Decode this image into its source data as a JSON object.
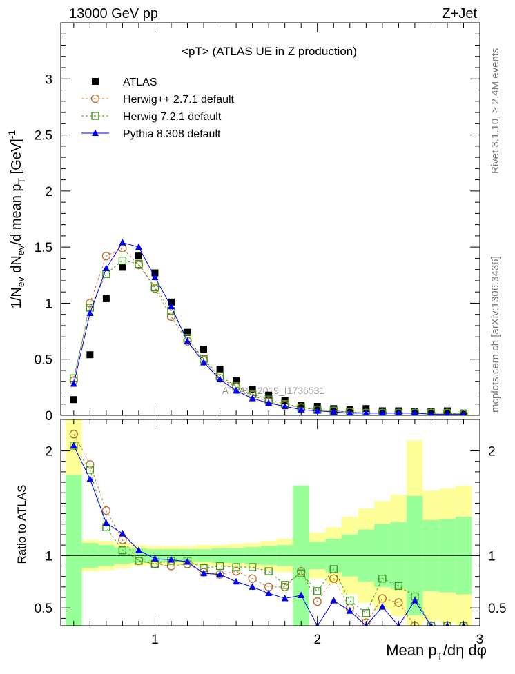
{
  "header": {
    "left": "13000 GeV pp",
    "right": "Z+Jet"
  },
  "side_labels": {
    "rivet": "Rivet 3.1.10, ≥ 2.4M events",
    "mcplots": "mcplots.cern.ch [arXiv:1306.3436]"
  },
  "watermark": "ATLAS_2019_I1736531",
  "colors": {
    "atlas": "#000000",
    "herwigpp": "#b8732e",
    "herwig7": "#3d9a1e",
    "pythia": "#0000ee",
    "band_inner": "#99ff99",
    "band_outer": "#ffff99"
  },
  "chart_data": [
    {
      "type": "scatter",
      "panel": "main",
      "title": "<pT> (ATLAS UE in Z production)",
      "ylabel": "1/N_ev dN_ev/d mean p_T [GeV]^-1",
      "xlim": [
        0.42,
        3.0
      ],
      "ylim": [
        0,
        3.5
      ],
      "yticks": [
        0,
        0.5,
        1,
        1.5,
        2,
        2.5,
        3
      ],
      "ytick_labels": [
        "0",
        "0.5",
        "1",
        "1.5",
        "2",
        "2.5",
        "3"
      ],
      "legend_position": "top-left",
      "x": [
        0.5,
        0.6,
        0.7,
        0.8,
        0.9,
        1.0,
        1.1,
        1.2,
        1.3,
        1.4,
        1.5,
        1.6,
        1.7,
        1.8,
        1.9,
        2.0,
        2.1,
        2.2,
        2.3,
        2.4,
        2.5,
        2.6,
        2.7,
        2.8,
        2.9
      ],
      "series": [
        {
          "name": "ATLAS",
          "marker": "filled-square",
          "values": [
            0.14,
            0.54,
            1.04,
            1.32,
            1.42,
            1.27,
            1.01,
            0.74,
            0.59,
            0.41,
            0.31,
            0.23,
            0.18,
            0.13,
            0.09,
            0.08,
            0.06,
            0.05,
            0.06,
            0.04,
            0.04,
            0.03,
            0.03,
            0.04,
            0.02
          ]
        },
        {
          "name": "Herwig++ 2.7.1 default",
          "marker": "open-circle",
          "line": "dashed",
          "values": [
            0.31,
            1.0,
            1.42,
            1.49,
            1.34,
            1.13,
            0.88,
            0.66,
            0.49,
            0.33,
            0.25,
            0.18,
            0.12,
            0.09,
            0.07,
            0.05,
            0.04,
            0.03,
            0.02,
            0.02,
            0.02,
            0.02,
            0.02,
            0.02,
            0.01
          ]
        },
        {
          "name": "Herwig 7.2.1 default",
          "marker": "open-square",
          "line": "dashed",
          "values": [
            0.33,
            0.96,
            1.26,
            1.38,
            1.35,
            1.14,
            0.93,
            0.69,
            0.5,
            0.35,
            0.26,
            0.19,
            0.14,
            0.1,
            0.07,
            0.05,
            0.04,
            0.03,
            0.02,
            0.02,
            0.02,
            0.02,
            0.02,
            0.02,
            0.01
          ]
        },
        {
          "name": "Pythia 8.308 default",
          "marker": "filled-triangle",
          "line": "solid",
          "values": [
            0.28,
            0.91,
            1.31,
            1.54,
            1.5,
            1.23,
            0.97,
            0.66,
            0.47,
            0.32,
            0.22,
            0.15,
            0.11,
            0.08,
            0.05,
            0.04,
            0.03,
            0.02,
            0.02,
            0.02,
            0.02,
            0.02,
            0.01,
            0.01,
            0.01
          ]
        }
      ]
    },
    {
      "type": "scatter",
      "panel": "ratio",
      "ylabel": "Ratio to ATLAS",
      "xlabel": "Mean p_T/dη dφ",
      "xlim": [
        0.42,
        3.0
      ],
      "ylim": [
        0.33,
        2.3
      ],
      "xticks": [
        1,
        2,
        3
      ],
      "xtick_labels": [
        "1",
        "2",
        "3"
      ],
      "yticks": [
        0.5,
        1,
        2
      ],
      "ytick_labels": [
        "0.5",
        "1",
        "2"
      ],
      "reference_line": 1,
      "x": [
        0.5,
        0.6,
        0.7,
        0.8,
        0.9,
        1.0,
        1.1,
        1.2,
        1.3,
        1.4,
        1.5,
        1.6,
        1.7,
        1.8,
        1.9,
        2.0,
        2.1,
        2.2,
        2.3,
        2.4,
        2.5,
        2.6,
        2.7,
        2.8,
        2.9
      ],
      "band_inner": [
        [
          0.22,
          1.77
        ],
        [
          0.88,
          1.12
        ],
        [
          0.9,
          1.1
        ],
        [
          0.92,
          1.08
        ],
        [
          0.93,
          1.07
        ],
        [
          0.94,
          1.06
        ],
        [
          0.94,
          1.06
        ],
        [
          0.94,
          1.06
        ],
        [
          0.94,
          1.06
        ],
        [
          0.93,
          1.07
        ],
        [
          0.93,
          1.07
        ],
        [
          0.92,
          1.08
        ],
        [
          0.91,
          1.09
        ],
        [
          0.9,
          1.1
        ],
        [
          0.33,
          1.67
        ],
        [
          0.87,
          1.13
        ],
        [
          0.84,
          1.16
        ],
        [
          0.8,
          1.2
        ],
        [
          0.75,
          1.25
        ],
        [
          0.7,
          1.3
        ],
        [
          0.68,
          1.32
        ],
        [
          0.43,
          1.57
        ],
        [
          0.66,
          1.34
        ],
        [
          0.65,
          1.35
        ],
        [
          0.63,
          1.37
        ]
      ],
      "band_outer": [
        [
          0.33,
          2.3
        ],
        [
          0.85,
          1.15
        ],
        [
          0.86,
          1.14
        ],
        [
          0.88,
          1.12
        ],
        [
          0.9,
          1.1
        ],
        [
          0.91,
          1.09
        ],
        [
          0.91,
          1.09
        ],
        [
          0.91,
          1.09
        ],
        [
          0.9,
          1.1
        ],
        [
          0.9,
          1.1
        ],
        [
          0.89,
          1.11
        ],
        [
          0.88,
          1.12
        ],
        [
          0.86,
          1.14
        ],
        [
          0.84,
          1.16
        ],
        [
          0.33,
          1.67
        ],
        [
          0.78,
          1.22
        ],
        [
          0.73,
          1.27
        ],
        [
          0.63,
          1.37
        ],
        [
          0.55,
          1.45
        ],
        [
          0.48,
          1.52
        ],
        [
          0.42,
          1.58
        ],
        [
          0.33,
          2.1
        ],
        [
          0.38,
          1.62
        ],
        [
          0.36,
          1.64
        ],
        [
          0.33,
          1.67
        ]
      ],
      "series": [
        {
          "name": "Herwig++ 2.7.1 default",
          "marker": "open-circle",
          "line": "dashed",
          "values": [
            2.16,
            1.87,
            1.43,
            1.15,
            0.95,
            0.92,
            0.9,
            0.92,
            0.84,
            0.82,
            0.85,
            0.78,
            0.7,
            0.7,
            0.85,
            0.56,
            0.78,
            0.5,
            0.36,
            0.59,
            0.55,
            0.33,
            0.33,
            0.33,
            0.33
          ]
        },
        {
          "name": "Herwig 7.2.1 default",
          "marker": "open-square",
          "line": "dashed",
          "values": [
            2.05,
            1.82,
            1.27,
            1.05,
            0.95,
            0.92,
            0.95,
            0.95,
            0.88,
            0.9,
            0.89,
            0.89,
            0.85,
            0.72,
            0.83,
            0.66,
            0.87,
            0.57,
            0.45,
            0.78,
            0.71,
            0.61,
            0.33,
            0.33,
            0.33
          ]
        },
        {
          "name": "Pythia 8.308 default",
          "marker": "filled-triangle",
          "line": "solid",
          "values": [
            2.05,
            1.73,
            1.31,
            1.21,
            1.05,
            0.97,
            0.96,
            0.94,
            0.83,
            0.82,
            0.75,
            0.7,
            0.64,
            0.59,
            0.62,
            0.33,
            0.57,
            0.47,
            0.33,
            0.51,
            0.33,
            0.57,
            0.33,
            0.33,
            0.33
          ]
        }
      ]
    }
  ]
}
